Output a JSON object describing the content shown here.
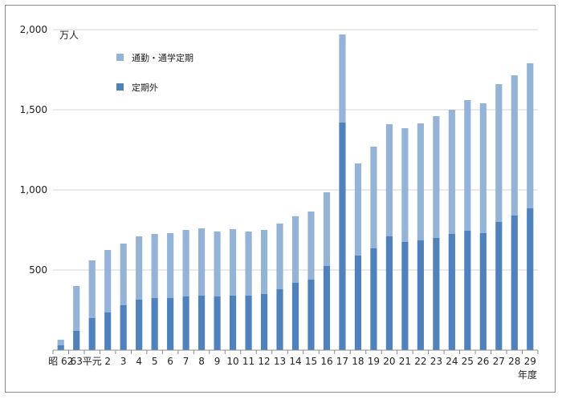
{
  "chart_data": {
    "type": "bar",
    "stacked": true,
    "unit_label": "万人",
    "xlabel": "年度",
    "ylim": [
      0,
      2000
    ],
    "yticks": [
      {
        "value": 0,
        "label": ""
      },
      {
        "value": 500,
        "label": "500"
      },
      {
        "value": 1000,
        "label": "1,000"
      },
      {
        "value": 1500,
        "label": "1,500"
      },
      {
        "value": 2000,
        "label": "2,000"
      }
    ],
    "grid": true,
    "legend_position": "top-left",
    "categories": [
      "昭 62",
      "63",
      "平元",
      "2",
      "3",
      "4",
      "5",
      "6",
      "7",
      "8",
      "9",
      "10",
      "11",
      "12",
      "13",
      "14",
      "15",
      "16",
      "17",
      "18",
      "19",
      "20",
      "21",
      "22",
      "23",
      "24",
      "25",
      "26",
      "27",
      "28",
      "29"
    ],
    "series": [
      {
        "name": "定期外",
        "color": "#4f81bd",
        "values": [
          30,
          120,
          200,
          235,
          280,
          315,
          325,
          325,
          335,
          340,
          335,
          340,
          340,
          350,
          380,
          420,
          440,
          525,
          1420,
          590,
          635,
          710,
          675,
          685,
          700,
          725,
          745,
          730,
          800,
          840,
          885
        ]
      },
      {
        "name": "通勤・通学定期",
        "color": "#95b3d7",
        "values": [
          35,
          280,
          360,
          390,
          385,
          395,
          400,
          405,
          415,
          420,
          405,
          415,
          400,
          400,
          410,
          415,
          425,
          460,
          550,
          575,
          635,
          700,
          710,
          730,
          760,
          775,
          815,
          810,
          860,
          875,
          905
        ]
      }
    ]
  }
}
